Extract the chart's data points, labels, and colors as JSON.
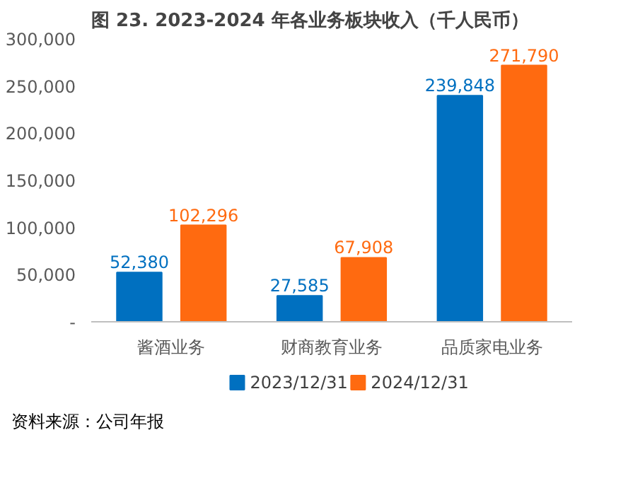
{
  "chart_data": {
    "type": "bar",
    "title": "图 23. 2023-2024 年各业务板块收入（千人民币）",
    "categories": [
      "酱酒业务",
      "财商教育业务",
      "品质家电业务"
    ],
    "series": [
      {
        "name": "2023/12/31",
        "color": "#0070c0",
        "values": [
          52380,
          27585,
          239848
        ],
        "value_labels": [
          "52,380",
          "27,585",
          "239,848"
        ]
      },
      {
        "name": "2024/12/31",
        "color": "#ff6a10",
        "values": [
          102296,
          67908,
          271790
        ],
        "value_labels": [
          "102,296",
          "67,908",
          "271,790"
        ]
      }
    ],
    "ylim": [
      0,
      300000
    ],
    "yticks": [
      {
        "value": 0,
        "label": "-"
      },
      {
        "value": 50000,
        "label": "50,000"
      },
      {
        "value": 100000,
        "label": "100,000"
      },
      {
        "value": 150000,
        "label": "150,000"
      },
      {
        "value": 200000,
        "label": "200,000"
      },
      {
        "value": 250000,
        "label": "250,000"
      },
      {
        "value": 300000,
        "label": "300,000"
      }
    ],
    "grid": false,
    "legend": "bottom",
    "annotations": [
      "资料来源：公司年报"
    ]
  }
}
